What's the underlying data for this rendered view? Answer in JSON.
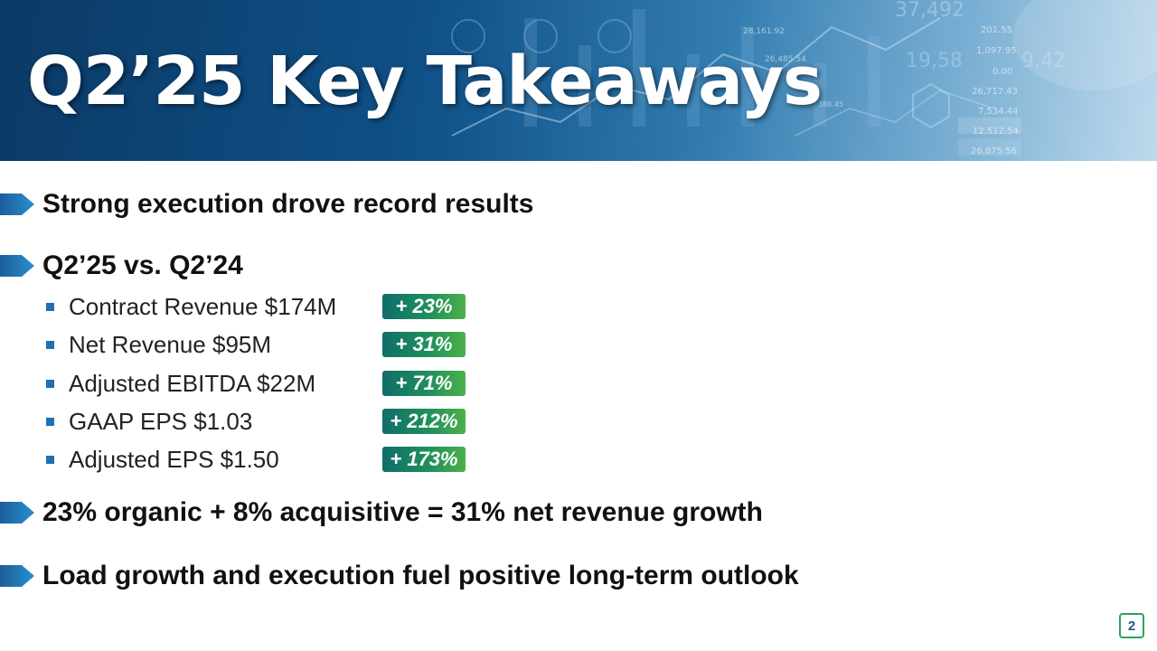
{
  "slide": {
    "title": "Q2’25 Key Takeaways",
    "page_number": "2"
  },
  "banner": {
    "background_numbers": [
      "37,492",
      "28,161.92",
      "26,485.54",
      "201.55",
      "1,097.95",
      "0.00",
      "26,717.43",
      "7,534.44",
      "12,512.54",
      "26,875.56",
      "19,58",
      "9.42",
      "388.45"
    ]
  },
  "bullets": [
    {
      "text": "Strong execution drove record results"
    },
    {
      "text": "Q2’25 vs. Q2’24"
    },
    {
      "text": "23% organic + 8% acquisitive = 31% net revenue growth"
    },
    {
      "text": "Load growth and execution fuel positive long-term outlook"
    }
  ],
  "metrics": [
    {
      "label": "Contract Revenue $174M",
      "change": "+ 23%"
    },
    {
      "label": "Net Revenue $95M",
      "change": "+ 31%"
    },
    {
      "label": "Adjusted EBITDA $22M",
      "change": "+ 71%"
    },
    {
      "label": "GAAP EPS $1.03",
      "change": "+ 212%"
    },
    {
      "label": "Adjusted EPS $1.50",
      "change": "+ 173%"
    }
  ],
  "colors": {
    "banner_dark": "#0b3a66",
    "arrow_blue": "#1f6fb4",
    "badge_green": "#1f8f5c",
    "text_dark": "#111111"
  }
}
